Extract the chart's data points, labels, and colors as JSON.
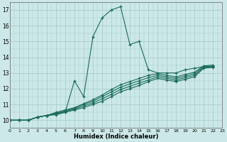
{
  "xlabel": "Humidex (Indice chaleur)",
  "bg_color": "#cce8e8",
  "grid_color": "#aacccc",
  "line_color": "#1a6b5a",
  "xlim": [
    0,
    23
  ],
  "ylim": [
    9.5,
    17.5
  ],
  "xticks": [
    0,
    1,
    2,
    3,
    4,
    5,
    6,
    7,
    8,
    9,
    10,
    11,
    12,
    13,
    14,
    15,
    16,
    17,
    18,
    19,
    20,
    21,
    22,
    23
  ],
  "yticks": [
    10,
    11,
    12,
    13,
    14,
    15,
    16,
    17
  ],
  "curves": [
    [
      10.0,
      10.0,
      10.0,
      10.2,
      10.3,
      10.4,
      10.5,
      12.5,
      11.5,
      15.3,
      16.5,
      17.0,
      17.2,
      14.8,
      15.0,
      13.2,
      13.0,
      13.0,
      13.0,
      13.2,
      13.3,
      13.4,
      13.4
    ],
    [
      10.0,
      10.0,
      10.0,
      10.2,
      10.3,
      10.35,
      10.5,
      10.65,
      10.8,
      11.0,
      11.2,
      11.5,
      11.8,
      12.0,
      12.2,
      12.45,
      12.65,
      12.55,
      12.45,
      12.6,
      12.75,
      13.3,
      13.35
    ],
    [
      10.0,
      10.0,
      10.0,
      10.2,
      10.3,
      10.4,
      10.55,
      10.7,
      10.9,
      11.1,
      11.35,
      11.65,
      11.95,
      12.15,
      12.35,
      12.55,
      12.75,
      12.65,
      12.55,
      12.7,
      12.85,
      13.35,
      13.4
    ],
    [
      10.0,
      10.0,
      10.0,
      10.2,
      10.3,
      10.45,
      10.6,
      10.75,
      11.0,
      11.2,
      11.5,
      11.8,
      12.1,
      12.3,
      12.5,
      12.7,
      12.85,
      12.75,
      12.65,
      12.8,
      12.95,
      13.4,
      13.45
    ],
    [
      10.0,
      10.0,
      10.0,
      10.2,
      10.3,
      10.5,
      10.65,
      10.8,
      11.05,
      11.3,
      11.6,
      11.95,
      12.25,
      12.45,
      12.65,
      12.85,
      12.95,
      12.85,
      12.75,
      12.9,
      13.05,
      13.45,
      13.5
    ]
  ]
}
